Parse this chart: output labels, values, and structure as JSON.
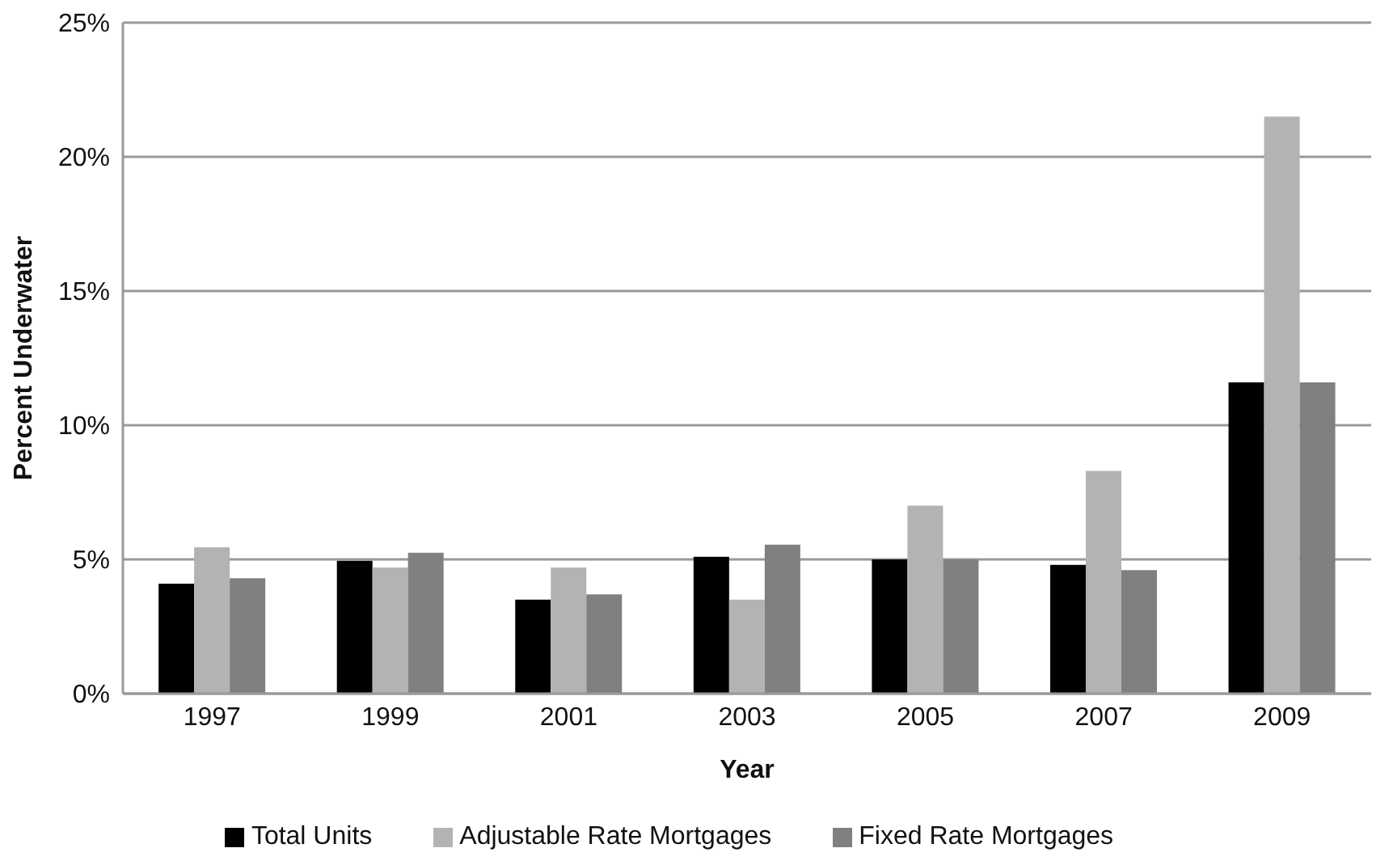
{
  "chart_data": {
    "type": "bar",
    "xlabel": "Year",
    "ylabel": "Percent Underwater",
    "categories": [
      "1997",
      "1999",
      "2001",
      "2003",
      "2005",
      "2007",
      "2009"
    ],
    "series": [
      {
        "name": "Total Units",
        "color": "#000000",
        "values": [
          4.1,
          4.95,
          3.5,
          5.1,
          5.0,
          4.8,
          11.6
        ]
      },
      {
        "name": "Adjustable Rate Mortgages",
        "color": "#b3b3b3",
        "values": [
          5.45,
          4.7,
          4.7,
          3.5,
          7.0,
          8.3,
          21.5
        ]
      },
      {
        "name": "Fixed Rate Mortgages",
        "color": "#808080",
        "values": [
          4.3,
          5.25,
          3.7,
          5.55,
          5.0,
          4.6,
          11.6
        ]
      }
    ],
    "ylim": [
      0,
      25
    ],
    "yticks": [
      {
        "value": 0,
        "label": "0%"
      },
      {
        "value": 5,
        "label": "5%"
      },
      {
        "value": 10,
        "label": "10%"
      },
      {
        "value": 15,
        "label": "15%"
      },
      {
        "value": 20,
        "label": "20%"
      },
      {
        "value": 25,
        "label": "25%"
      }
    ],
    "grid": "y",
    "legend": "bottom"
  }
}
